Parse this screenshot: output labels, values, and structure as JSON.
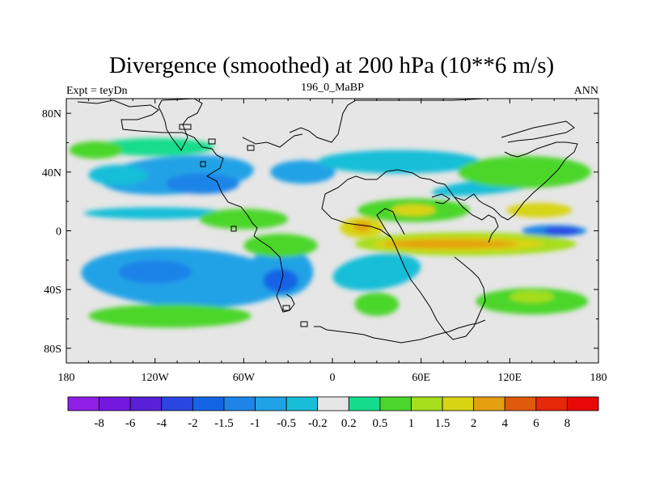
{
  "chart_data": {
    "type": "heatmap",
    "title": "Divergence (smoothed) at 200 hPa (10**6 m/s)",
    "left_string": "Expt = teyDn",
    "center_string": "196_0_MaBP",
    "right_string": "ANN",
    "x_ticks": [
      {
        "value": -180,
        "label": "180"
      },
      {
        "value": -120,
        "label": "120W"
      },
      {
        "value": -60,
        "label": "60W"
      },
      {
        "value": 0,
        "label": "0"
      },
      {
        "value": 60,
        "label": "60E"
      },
      {
        "value": 120,
        "label": "120E"
      },
      {
        "value": 180,
        "label": "180"
      }
    ],
    "y_ticks": [
      {
        "value": 80,
        "label": "80N"
      },
      {
        "value": 40,
        "label": "40N"
      },
      {
        "value": 0,
        "label": "0"
      },
      {
        "value": -40,
        "label": "40S"
      },
      {
        "value": -80,
        "label": "80S"
      }
    ],
    "xlim": [
      -180,
      180
    ],
    "ylim": [
      -90,
      90
    ],
    "colorbar": {
      "levels": [
        "-8",
        "-6",
        "-4",
        "-2",
        "-1.5",
        "-1",
        "-0.5",
        "-0.2",
        "0.2",
        "0.5",
        "1",
        "1.5",
        "2",
        "4",
        "6",
        "8"
      ],
      "colors": [
        "#8f1ee6",
        "#7418e0",
        "#5a20d8",
        "#2a46e2",
        "#1664e6",
        "#1e84e8",
        "#22a2e6",
        "#18bed8",
        "#e6e6e6",
        "#14dc8c",
        "#4bd62c",
        "#a6de1c",
        "#d8d414",
        "#e4a00e",
        "#e05a0c",
        "#e42808",
        "#e80808"
      ]
    },
    "features": [
      {
        "lon": -105,
        "lat": 38,
        "rx": 52,
        "ry": 13,
        "level": 6,
        "rot": -4
      },
      {
        "lon": -88,
        "lat": 32,
        "rx": 25,
        "ry": 7,
        "level": 5,
        "rot": 0
      },
      {
        "lon": -145,
        "lat": 38,
        "rx": 20,
        "ry": 7,
        "level": 7,
        "rot": 0
      },
      {
        "lon": -20,
        "lat": 40,
        "rx": 22,
        "ry": 8,
        "level": 6,
        "rot": 0
      },
      {
        "lon": 45,
        "lat": 47,
        "rx": 55,
        "ry": 8,
        "level": 7,
        "rot": 0
      },
      {
        "lon": -120,
        "lat": 12,
        "rx": 48,
        "ry": 4,
        "level": 7,
        "rot": 0
      },
      {
        "lon": 105,
        "lat": 30,
        "rx": 38,
        "ry": 5,
        "level": 7,
        "rot": -6
      },
      {
        "lon": -100,
        "lat": -32,
        "rx": 70,
        "ry": 20,
        "level": 6,
        "rot": 3
      },
      {
        "lon": -120,
        "lat": -28,
        "rx": 25,
        "ry": 8,
        "level": 5,
        "rot": 0
      },
      {
        "lon": -35,
        "lat": -28,
        "rx": 22,
        "ry": 17,
        "level": 6,
        "rot": 0
      },
      {
        "lon": -35,
        "lat": -34,
        "rx": 12,
        "ry": 8,
        "level": 4,
        "rot": 0
      },
      {
        "lon": 30,
        "lat": -28,
        "rx": 30,
        "ry": 12,
        "level": 7,
        "rot": -8
      },
      {
        "lon": 150,
        "lat": 0,
        "rx": 22,
        "ry": 4,
        "level": 5,
        "rot": 0
      },
      {
        "lon": 155,
        "lat": 0,
        "rx": 12,
        "ry": 2.5,
        "level": 3,
        "rot": 0
      },
      {
        "lon": -120,
        "lat": 57,
        "rx": 40,
        "ry": 6,
        "level": 9,
        "rot": 0
      },
      {
        "lon": -160,
        "lat": 55,
        "rx": 18,
        "ry": 6,
        "level": 10,
        "rot": 0
      },
      {
        "lon": 130,
        "lat": 40,
        "rx": 45,
        "ry": 11,
        "level": 10,
        "rot": 0
      },
      {
        "lon": 55,
        "lat": 14,
        "rx": 38,
        "ry": 8,
        "level": 10,
        "rot": 0
      },
      {
        "lon": 55,
        "lat": 14,
        "rx": 15,
        "ry": 4,
        "level": 12,
        "rot": 0
      },
      {
        "lon": 140,
        "lat": 14,
        "rx": 22,
        "ry": 5,
        "level": 12,
        "rot": 0
      },
      {
        "lon": 20,
        "lat": 2,
        "rx": 15,
        "ry": 7,
        "level": 12,
        "rot": 0
      },
      {
        "lon": 20,
        "lat": 3,
        "rx": 6,
        "ry": 3.5,
        "level": 13,
        "rot": 0
      },
      {
        "lon": 90,
        "lat": -9,
        "rx": 75,
        "ry": 8,
        "level": 11,
        "rot": 0
      },
      {
        "lon": 85,
        "lat": -9,
        "rx": 58,
        "ry": 5,
        "level": 12,
        "rot": 0
      },
      {
        "lon": 80,
        "lat": -9,
        "rx": 45,
        "ry": 3,
        "level": 13,
        "rot": 0
      },
      {
        "lon": -60,
        "lat": 8,
        "rx": 30,
        "ry": 7,
        "level": 10,
        "rot": 0
      },
      {
        "lon": -35,
        "lat": -10,
        "rx": 25,
        "ry": 8,
        "level": 10,
        "rot": 0
      },
      {
        "lon": -110,
        "lat": -58,
        "rx": 55,
        "ry": 8,
        "level": 10,
        "rot": 0
      },
      {
        "lon": 135,
        "lat": -48,
        "rx": 38,
        "ry": 9,
        "level": 10,
        "rot": 0
      },
      {
        "lon": 135,
        "lat": -45,
        "rx": 15,
        "ry": 4,
        "level": 11,
        "rot": 0
      },
      {
        "lon": 30,
        "lat": -50,
        "rx": 15,
        "ry": 8,
        "level": 10,
        "rot": 0
      }
    ]
  }
}
